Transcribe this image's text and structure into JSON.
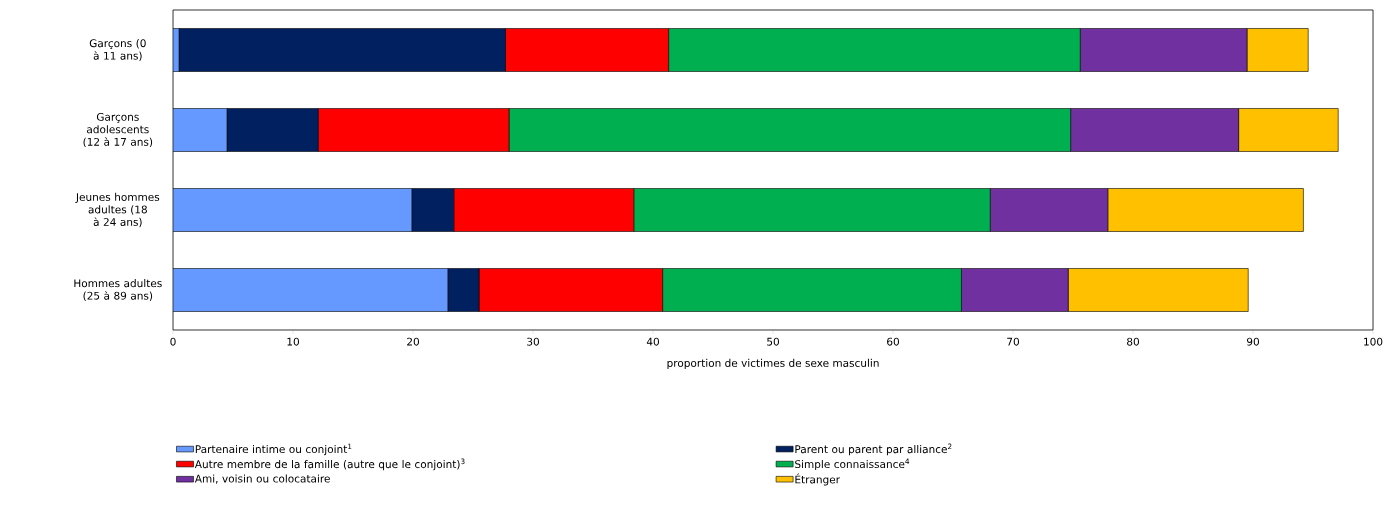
{
  "chart_data": {
    "type": "bar",
    "orientation": "horizontal",
    "stacked": true,
    "xlabel": "proportion de victimes de sexe masculin",
    "categories": [
      "Garçons (0 à 11 ans)",
      "Garçons adolescents (12 à 17 ans)",
      "Jeunes hommes adultes (18 à 24 ans)",
      "Hommes adultes (25 à 89 ans)"
    ],
    "series": [
      {
        "name": "Partenaire intime ou conjoint$^{1}$",
        "color": "#6699ff",
        "values": [
          0.5,
          4.5,
          19.9,
          22.9
        ]
      },
      {
        "name": "Parent ou parent par alliance$^{2}$",
        "color": "#002060",
        "values": [
          27.2,
          7.6,
          3.5,
          2.6
        ]
      },
      {
        "name": "Autre membre de la famille (autre que le conjoint)$^{3}$",
        "color": "#ff0000",
        "values": [
          13.6,
          15.9,
          15.0,
          15.3
        ]
      },
      {
        "name": "Simple connaissance$^{4}$",
        "color": "#00b050",
        "values": [
          34.3,
          46.8,
          29.7,
          24.9
        ]
      },
      {
        "name": "Ami, voisin ou colocataire",
        "color": "#7030a0",
        "values": [
          13.9,
          14.0,
          9.8,
          8.9
        ]
      },
      {
        "name": "Étranger",
        "color": "#ffc000",
        "values": [
          5.1,
          8.3,
          16.3,
          15.0
        ]
      }
    ],
    "xlim": [
      0,
      100
    ],
    "xticks": [
      0,
      10,
      20,
      30,
      40,
      50,
      60,
      70,
      80,
      90,
      100
    ],
    "grid": false,
    "legend": "bottom"
  }
}
